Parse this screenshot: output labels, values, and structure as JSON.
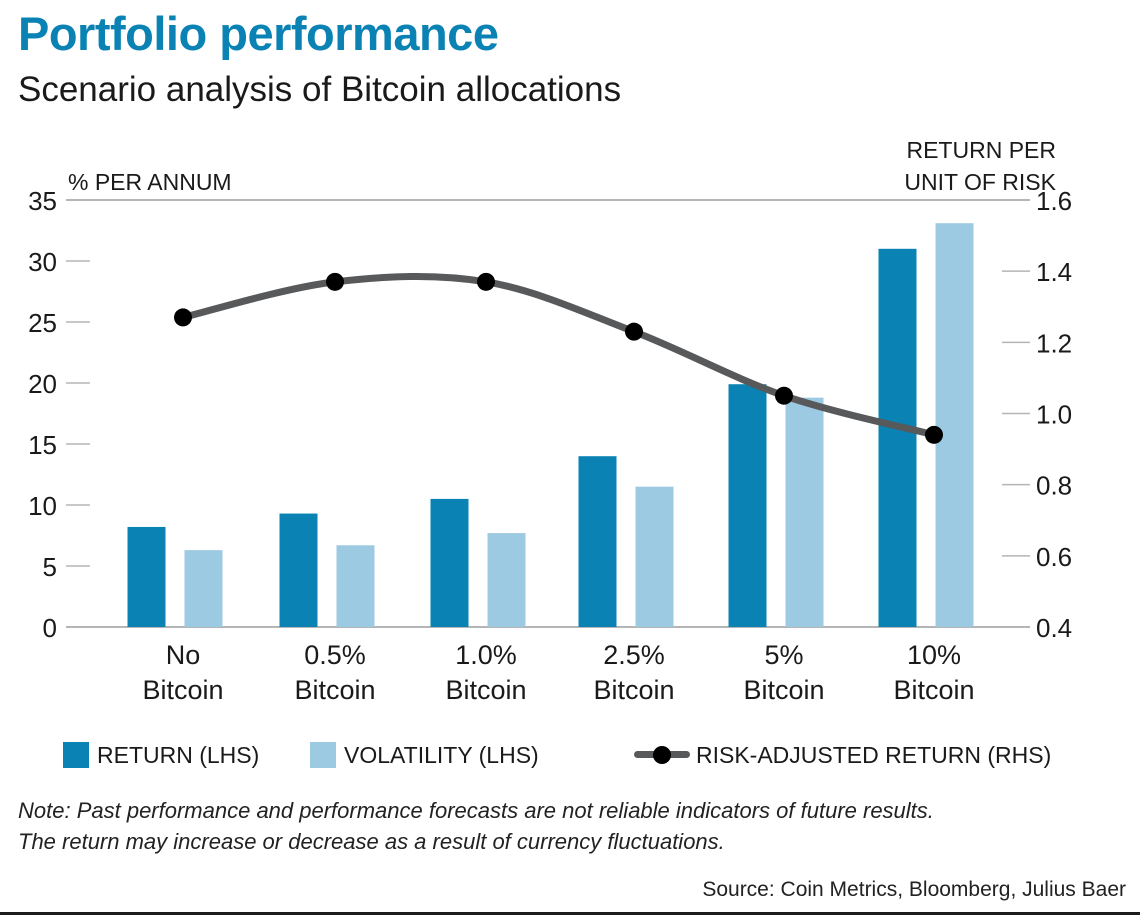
{
  "header": {
    "title": "Portfolio performance",
    "subtitle": "Scenario analysis of Bitcoin allocations"
  },
  "colors": {
    "title": "#0a83b4",
    "return": "#0a83b4",
    "volatility": "#9dcae3",
    "risk_line": "#58595b",
    "risk_marker": "#000000",
    "axis": "#b5b5b5"
  },
  "legend": {
    "items": [
      {
        "label": "RETURN (LHS)",
        "type": "bar"
      },
      {
        "label": "VOLATILITY (LHS)",
        "type": "bar"
      },
      {
        "label": "RISK-ADJUSTED RETURN (RHS)",
        "type": "line"
      }
    ]
  },
  "footer": {
    "note_line1": "Note: Past performance and performance forecasts are not reliable indicators of future results.",
    "note_line2": "The return may increase or decrease as a result of currency fluctuations.",
    "source": "Source: Coin Metrics, Bloomberg, Julius Baer"
  },
  "chart_data": {
    "type": "bar",
    "title": "Portfolio performance",
    "subtitle": "Scenario analysis of Bitcoin allocations",
    "categories": [
      [
        "No",
        "Bitcoin"
      ],
      [
        "0.5%",
        "Bitcoin"
      ],
      [
        "1.0%",
        "Bitcoin"
      ],
      [
        "2.5%",
        "Bitcoin"
      ],
      [
        "5%",
        "Bitcoin"
      ],
      [
        "10%",
        "Bitcoin"
      ]
    ],
    "y_left": {
      "label": "% PER ANNUM",
      "range": [
        0,
        35
      ],
      "ticks": [
        "0",
        "5",
        "10",
        "15",
        "20",
        "25",
        "30",
        "35"
      ],
      "tick_values": [
        0,
        5,
        10,
        15,
        20,
        25,
        30,
        35
      ]
    },
    "y_right": {
      "label_line1": "RETURN PER",
      "label_line2": "UNIT OF RISK",
      "range": [
        0.4,
        1.6
      ],
      "ticks": [
        "0.4",
        "0.6",
        "0.8",
        "1.0",
        "1.2",
        "1.4",
        "1.6"
      ],
      "tick_values": [
        0.4,
        0.6,
        0.8,
        1.0,
        1.2,
        1.4,
        1.6
      ]
    },
    "series": [
      {
        "name": "RETURN (LHS)",
        "type": "bar",
        "axis": "left",
        "values": [
          8.2,
          9.3,
          10.5,
          14.0,
          19.9,
          31.0
        ]
      },
      {
        "name": "VOLATILITY (LHS)",
        "type": "bar",
        "axis": "left",
        "values": [
          6.3,
          6.7,
          7.7,
          11.5,
          18.8,
          33.1
        ]
      },
      {
        "name": "RISK-ADJUSTED RETURN (RHS)",
        "type": "line",
        "axis": "right",
        "values": [
          1.27,
          1.37,
          1.37,
          1.23,
          1.05,
          0.94
        ]
      }
    ],
    "grid": false,
    "legend_position": "bottom"
  }
}
